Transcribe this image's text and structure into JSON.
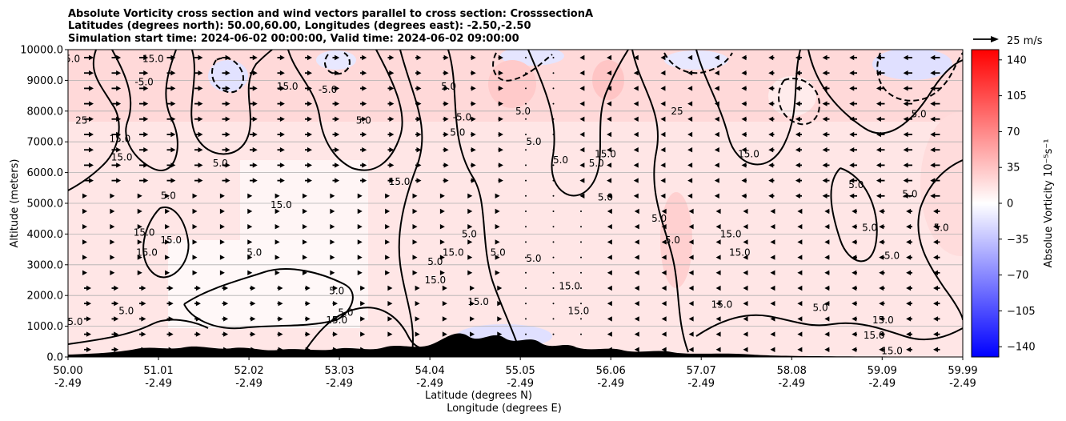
{
  "chart_data": {
    "type": "heatmap",
    "title": [
      "Absolute Vorticity cross section and wind vectors parallel to cross section: CrosssectionA",
      "Latitudes (degrees north): 50.00,60.00, Longitudes (degrees east): -2.50,-2.50",
      "Simulation start time: 2024-06-02 00:00:00, Valid time: 2024-06-02 09:00:00"
    ],
    "xlabel": [
      "Latitude (degrees N)",
      "Longitude (degrees E)"
    ],
    "ylabel": "Altitude (meters)",
    "x_range": [
      50.0,
      59.99
    ],
    "ylim": [
      0,
      10000
    ],
    "x_ticks": [
      {
        "lat": "50.00",
        "lon": "-2.49",
        "v": 50.0
      },
      {
        "lat": "51.01",
        "lon": "-2.49",
        "v": 51.01
      },
      {
        "lat": "52.02",
        "lon": "-2.49",
        "v": 52.02
      },
      {
        "lat": "53.03",
        "lon": "-2.49",
        "v": 53.03
      },
      {
        "lat": "54.04",
        "lon": "-2.49",
        "v": 54.04
      },
      {
        "lat": "55.05",
        "lon": "-2.49",
        "v": 55.05
      },
      {
        "lat": "56.06",
        "lon": "-2.49",
        "v": 56.06
      },
      {
        "lat": "57.07",
        "lon": "-2.49",
        "v": 57.07
      },
      {
        "lat": "58.08",
        "lon": "-2.49",
        "v": 58.08
      },
      {
        "lat": "59.09",
        "lon": "-2.49",
        "v": 59.09
      },
      {
        "lat": "59.99",
        "lon": "-2.49",
        "v": 59.99
      }
    ],
    "y_ticks": [
      0,
      1000,
      2000,
      3000,
      4000,
      5000,
      6000,
      7000,
      8000,
      9000,
      10000
    ],
    "y_tick_labels": [
      "0.0",
      "1000.0",
      "2000.0",
      "3000.0",
      "4000.0",
      "5000.0",
      "6000.0",
      "7000.0",
      "8000.0",
      "9000.0",
      "10000.0"
    ],
    "grid": "horizontal",
    "colorbar": {
      "label": "Absolue Vorticity 10⁻⁵s⁻¹",
      "range": [
        -150,
        150
      ],
      "ticks": [
        -140,
        -105,
        -70,
        -35,
        0,
        35,
        70,
        105,
        140
      ],
      "tick_labels": [
        "−140",
        "−105",
        "−70",
        "−35",
        "0",
        "35",
        "70",
        "105",
        "140"
      ],
      "colormap": "bwr"
    },
    "quiver_key": {
      "label": "25 m/s",
      "value": 25
    },
    "contour_levels": [
      -5.0,
      5.0,
      15.0,
      25.0,
      35.0
    ],
    "contour_labels": [
      {
        "text": "15.0",
        "x": 50.95,
        "y": 9700
      },
      {
        "text": "5.0",
        "x": 50.05,
        "y": 9700
      },
      {
        "text": "-5.0",
        "x": 50.85,
        "y": 8950
      },
      {
        "text": "25",
        "x": 50.15,
        "y": 7700
      },
      {
        "text": "15.0",
        "x": 50.58,
        "y": 7100
      },
      {
        "text": "15.0",
        "x": 50.6,
        "y": 6500
      },
      {
        "text": "5.0",
        "x": 51.7,
        "y": 6300
      },
      {
        "text": "5.0",
        "x": 51.12,
        "y": 5250
      },
      {
        "text": "15.0",
        "x": 52.38,
        "y": 4950
      },
      {
        "text": "15.0",
        "x": 50.85,
        "y": 4050
      },
      {
        "text": "15.0",
        "x": 51.15,
        "y": 3800
      },
      {
        "text": "15.0",
        "x": 50.88,
        "y": 3400
      },
      {
        "text": "5.0",
        "x": 52.08,
        "y": 3400
      },
      {
        "text": "5.0",
        "x": 50.65,
        "y": 1500
      },
      {
        "text": "5.0",
        "x": 50.08,
        "y": 1150
      },
      {
        "text": "15.0",
        "x": 53.0,
        "y": 1200
      },
      {
        "text": "5.0",
        "x": 53.0,
        "y": 2150
      },
      {
        "text": "5.0",
        "x": 53.1,
        "y": 1450
      },
      {
        "text": "15.0",
        "x": 52.45,
        "y": 8800
      },
      {
        "text": "-5.0",
        "x": 52.9,
        "y": 8700
      },
      {
        "text": "5.0",
        "x": 53.3,
        "y": 7700
      },
      {
        "text": "15.0",
        "x": 53.7,
        "y": 5700
      },
      {
        "text": "5.0",
        "x": 54.25,
        "y": 8800
      },
      {
        "text": "5.0",
        "x": 54.35,
        "y": 7300
      },
      {
        "text": "-5.0",
        "x": 54.4,
        "y": 7800
      },
      {
        "text": "15.0",
        "x": 54.3,
        "y": 3400
      },
      {
        "text": "5.0",
        "x": 54.48,
        "y": 4000
      },
      {
        "text": "5.0",
        "x": 54.1,
        "y": 3100
      },
      {
        "text": "15.0",
        "x": 54.1,
        "y": 2500
      },
      {
        "text": "5.0",
        "x": 54.8,
        "y": 3400
      },
      {
        "text": "5.0",
        "x": 55.2,
        "y": 3200
      },
      {
        "text": "15.0",
        "x": 54.58,
        "y": 1800
      },
      {
        "text": "5.0",
        "x": 55.08,
        "y": 8000
      },
      {
        "text": "5.0",
        "x": 55.2,
        "y": 7000
      },
      {
        "text": "5.0",
        "x": 55.5,
        "y": 6400
      },
      {
        "text": "5.0",
        "x": 55.9,
        "y": 6300
      },
      {
        "text": "15.0",
        "x": 56.0,
        "y": 6600
      },
      {
        "text": "5.0",
        "x": 56.0,
        "y": 5200
      },
      {
        "text": "5.0",
        "x": 56.6,
        "y": 4500
      },
      {
        "text": "5.0",
        "x": 56.75,
        "y": 3800
      },
      {
        "text": "15.0",
        "x": 57.4,
        "y": 4000
      },
      {
        "text": "15.0",
        "x": 57.5,
        "y": 3400
      },
      {
        "text": "15.0",
        "x": 57.6,
        "y": 6600
      },
      {
        "text": "25",
        "x": 56.8,
        "y": 8000
      },
      {
        "text": "15.0",
        "x": 55.6,
        "y": 2300
      },
      {
        "text": "15.0",
        "x": 55.7,
        "y": 1500
      },
      {
        "text": "15.0",
        "x": 57.3,
        "y": 1700
      },
      {
        "text": "5.0",
        "x": 58.4,
        "y": 1600
      },
      {
        "text": "5.0",
        "x": 58.8,
        "y": 5600
      },
      {
        "text": "5.0",
        "x": 58.95,
        "y": 4200
      },
      {
        "text": "5.0",
        "x": 59.2,
        "y": 3300
      },
      {
        "text": "15.0",
        "x": 59.1,
        "y": 1200
      },
      {
        "text": "15.0",
        "x": 59.0,
        "y": 700
      },
      {
        "text": "15.0",
        "x": 59.2,
        "y": 200
      },
      {
        "text": "5.0",
        "x": 59.5,
        "y": 7900
      },
      {
        "text": "5.0",
        "x": 59.4,
        "y": 5300
      },
      {
        "text": "5.0",
        "x": 59.75,
        "y": 4200
      }
    ]
  }
}
